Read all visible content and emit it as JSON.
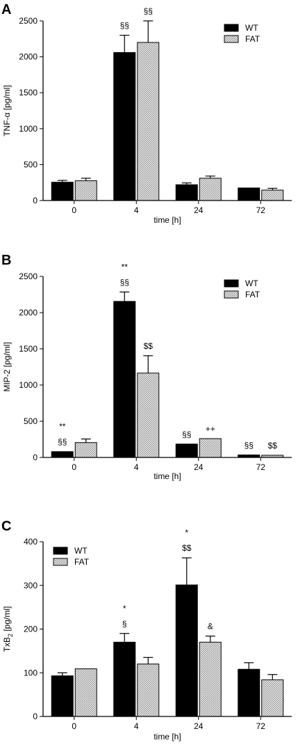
{
  "colors": {
    "wt": "#000000",
    "fat_hatch": "#9a9a9a",
    "fat_bg": "#e8e8e8"
  },
  "chart_data": [
    {
      "type": "bar",
      "panel": "A",
      "categories": [
        "0",
        "4",
        "24",
        "72"
      ],
      "xlabel": "time [h]",
      "ylabel": "TNF-α [pg/ml]",
      "ylim": [
        0,
        2500
      ],
      "yticks": [
        "0",
        "500",
        "1000",
        "1500",
        "2000",
        "2500"
      ],
      "legend_position": "top-right",
      "series": [
        {
          "name": "WT",
          "values": [
            255,
            2060,
            220,
            175
          ],
          "errors": [
            25,
            240,
            25,
            0
          ]
        },
        {
          "name": "FAT",
          "values": [
            275,
            2200,
            310,
            145
          ],
          "errors": [
            35,
            300,
            30,
            25
          ]
        }
      ],
      "annotations": [
        {
          "category": "4",
          "series": "WT",
          "lines": [
            "§§"
          ]
        },
        {
          "category": "4",
          "series": "FAT",
          "lines": [
            "§§"
          ]
        }
      ]
    },
    {
      "type": "bar",
      "panel": "B",
      "categories": [
        "0",
        "4",
        "24",
        "72"
      ],
      "xlabel": "time [h]",
      "ylabel": "MIP-2 [pg/ml]",
      "ylim": [
        0,
        2500
      ],
      "yticks": [
        "0",
        "500",
        "1000",
        "1500",
        "2000",
        "2500"
      ],
      "legend_position": "top-right",
      "series": [
        {
          "name": "WT",
          "values": [
            80,
            2155,
            185,
            35
          ],
          "errors": [
            0,
            130,
            0,
            0
          ]
        },
        {
          "name": "FAT",
          "values": [
            205,
            1165,
            260,
            30
          ],
          "errors": [
            50,
            240,
            0,
            0
          ]
        }
      ],
      "annotations": [
        {
          "category": "0",
          "series": "WT",
          "lines": [
            "**",
            "§§"
          ]
        },
        {
          "category": "4",
          "series": "WT",
          "lines": [
            "**",
            "§§"
          ]
        },
        {
          "category": "4",
          "series": "FAT",
          "lines": [
            "$$"
          ]
        },
        {
          "category": "24",
          "series": "WT",
          "lines": [
            "§§"
          ]
        },
        {
          "category": "24",
          "series": "FAT",
          "lines": [
            "++"
          ]
        },
        {
          "category": "72",
          "series": "WT",
          "lines": [
            "§§"
          ]
        },
        {
          "category": "72",
          "series": "FAT",
          "lines": [
            "$$"
          ]
        }
      ]
    },
    {
      "type": "bar",
      "panel": "C",
      "categories": [
        "0",
        "4",
        "24",
        "72"
      ],
      "xlabel": "time [h]",
      "ylabel": "TxB",
      "ylabel_sub": "2",
      "ylabel_tail": " [pg/ml]",
      "ylim": [
        0,
        400
      ],
      "yticks": [
        "0",
        "100",
        "200",
        "300",
        "400"
      ],
      "legend_position": "top-left",
      "series": [
        {
          "name": "WT",
          "values": [
            93,
            170,
            301,
            108
          ],
          "errors": [
            7,
            20,
            62,
            15
          ]
        },
        {
          "name": "FAT",
          "values": [
            109,
            120,
            170,
            84
          ],
          "errors": [
            0,
            15,
            14,
            12
          ]
        }
      ],
      "annotations": [
        {
          "category": "4",
          "series": "WT",
          "lines": [
            "*",
            "§"
          ]
        },
        {
          "category": "24",
          "series": "WT",
          "lines": [
            "*",
            "$$"
          ]
        },
        {
          "category": "24",
          "series": "FAT",
          "lines": [
            "&"
          ]
        }
      ]
    }
  ]
}
